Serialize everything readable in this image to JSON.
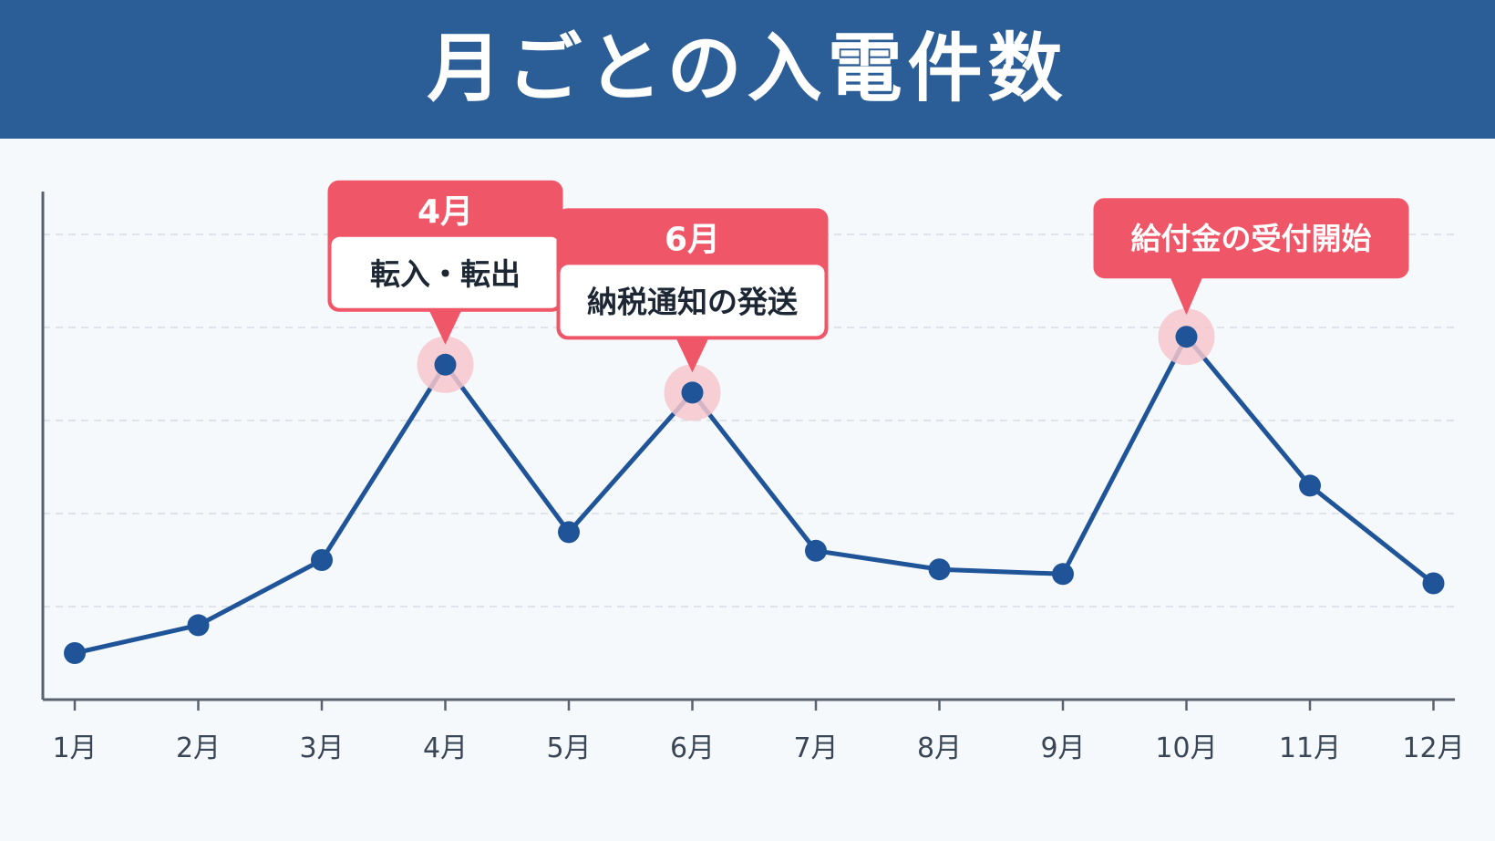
{
  "chart_data": {
    "type": "line",
    "title": "月ごとの入電件数",
    "xlabel": "",
    "ylabel": "",
    "categories": [
      "1月",
      "2月",
      "3月",
      "4月",
      "5月",
      "6月",
      "7月",
      "8月",
      "9月",
      "10月",
      "11月",
      "12月"
    ],
    "values": [
      5,
      8,
      15,
      36,
      18,
      33,
      16,
      14,
      13.5,
      39,
      23,
      12.5
    ],
    "ylim": [
      0,
      50
    ],
    "grid": true,
    "y_tick_labels_visible": false,
    "annotations": [
      {
        "category_index": 3,
        "header": "4月",
        "text": "転入・転出",
        "style": "two-part"
      },
      {
        "category_index": 5,
        "header": "6月",
        "text": "納税通知の発送",
        "style": "two-part"
      },
      {
        "category_index": 9,
        "header": "",
        "text": "給付金の受付開始",
        "style": "single"
      }
    ],
    "colors": {
      "line": "#1f5499",
      "marker": "#1f5499",
      "highlight": "#f6c7cd",
      "callout": "#ef5667",
      "header_bg": "#2b5d97",
      "grid": "#d9dee4",
      "axis": "#5a6270"
    }
  }
}
